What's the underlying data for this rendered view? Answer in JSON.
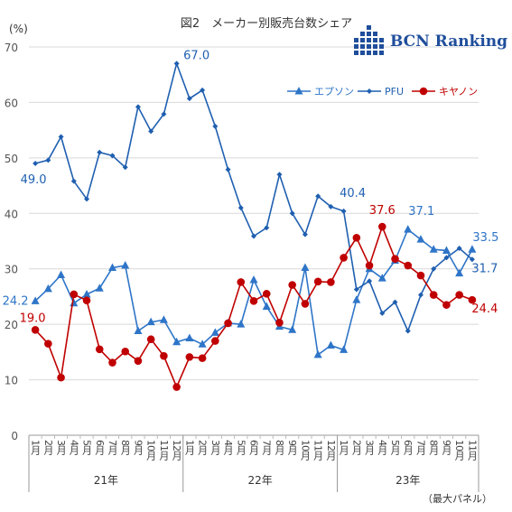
{
  "logo": {
    "text": "BCN Ranking"
  },
  "chart_data": {
    "type": "line",
    "title": "図2　メーカー別販売台数シェア",
    "ylabel": "(%)",
    "ylim": [
      0,
      70
    ],
    "yticks": [
      0,
      10,
      20,
      30,
      40,
      50,
      60,
      70
    ],
    "grid": true,
    "legend_position": "top-right",
    "categories": [
      "1月",
      "2月",
      "3月",
      "4月",
      "5月",
      "6月",
      "7月",
      "8月",
      "9月",
      "10月",
      "11月",
      "12月",
      "1月",
      "2月",
      "3月",
      "4月",
      "5月",
      "6月",
      "7月",
      "8月",
      "9月",
      "10月",
      "11月",
      "12月",
      "1月",
      "2月",
      "3月",
      "4月",
      "5月",
      "6月",
      "7月",
      "8月",
      "9月",
      "10月",
      "11月"
    ],
    "years": [
      {
        "label": "21年",
        "start": 0,
        "end": 11
      },
      {
        "label": "22年",
        "start": 12,
        "end": 23
      },
      {
        "label": "23年",
        "start": 24,
        "end": 34
      }
    ],
    "note": "（最大パネル）",
    "series": [
      {
        "name": "エプソン",
        "color": "#2e75c8",
        "marker": "triangle",
        "values": [
          24.2,
          26.4,
          28.9,
          23.8,
          25.4,
          26.5,
          30.2,
          30.6,
          18.8,
          20.4,
          20.8,
          16.8,
          17.5,
          16.4,
          18.5,
          20.2,
          20.0,
          28.0,
          23.2,
          19.6,
          19.0,
          30.2,
          14.5,
          16.2,
          15.4,
          24.4,
          30.0,
          28.3,
          31.5,
          37.1,
          35.3,
          33.5,
          33.3,
          29.2,
          33.5
        ],
        "labels": [
          {
            "index": 0,
            "text": "24.2"
          },
          {
            "index": 11,
            "text": "67.0",
            "series_ref": "PFU"
          },
          {
            "index": 34,
            "text": "33.5"
          }
        ]
      },
      {
        "name": "PFU",
        "color": "#1f5fb0",
        "marker": "diamond",
        "values": [
          49.0,
          49.6,
          53.8,
          45.8,
          42.6,
          51.0,
          50.4,
          48.3,
          59.2,
          54.8,
          57.9,
          67.0,
          60.7,
          62.2,
          55.7,
          47.9,
          41.0,
          35.9,
          37.4,
          47.0,
          40.0,
          36.2,
          43.1,
          41.2,
          40.4,
          26.3,
          27.8,
          22.0,
          24.0,
          18.8,
          25.3,
          30.0,
          32.0,
          33.7,
          31.7
        ],
        "labels": []
      },
      {
        "name": "キヤノン",
        "color": "#c00000",
        "marker": "circle",
        "values": [
          19.0,
          16.5,
          10.4,
          25.4,
          24.3,
          15.5,
          13.1,
          15.1,
          13.4,
          17.3,
          14.3,
          8.7,
          14.1,
          13.9,
          17.0,
          20.2,
          27.6,
          24.2,
          25.5,
          20.3,
          27.1,
          23.7,
          27.7,
          27.6,
          32.0,
          35.6,
          30.6,
          37.6,
          31.8,
          30.6,
          28.8,
          25.3,
          23.5,
          25.3,
          24.4
        ],
        "labels": []
      }
    ],
    "data_labels": [
      {
        "series": "エプソン",
        "index": 0,
        "text": "24.2"
      },
      {
        "series": "エプソン",
        "index": 29,
        "text": "37.1"
      },
      {
        "series": "エプソン",
        "index": 34,
        "text": "33.5"
      },
      {
        "series": "PFU",
        "index": 0,
        "text": "49.0"
      },
      {
        "series": "PFU",
        "index": 11,
        "text": "67.0"
      },
      {
        "series": "PFU",
        "index": 24,
        "text": "40.4"
      },
      {
        "series": "PFU",
        "index": 34,
        "text": "31.7"
      },
      {
        "series": "キヤノン",
        "index": 0,
        "text": "19.0"
      },
      {
        "series": "キヤノン",
        "index": 27,
        "text": "37.6"
      },
      {
        "series": "キヤノン",
        "index": 34,
        "text": "24.4"
      }
    ]
  }
}
